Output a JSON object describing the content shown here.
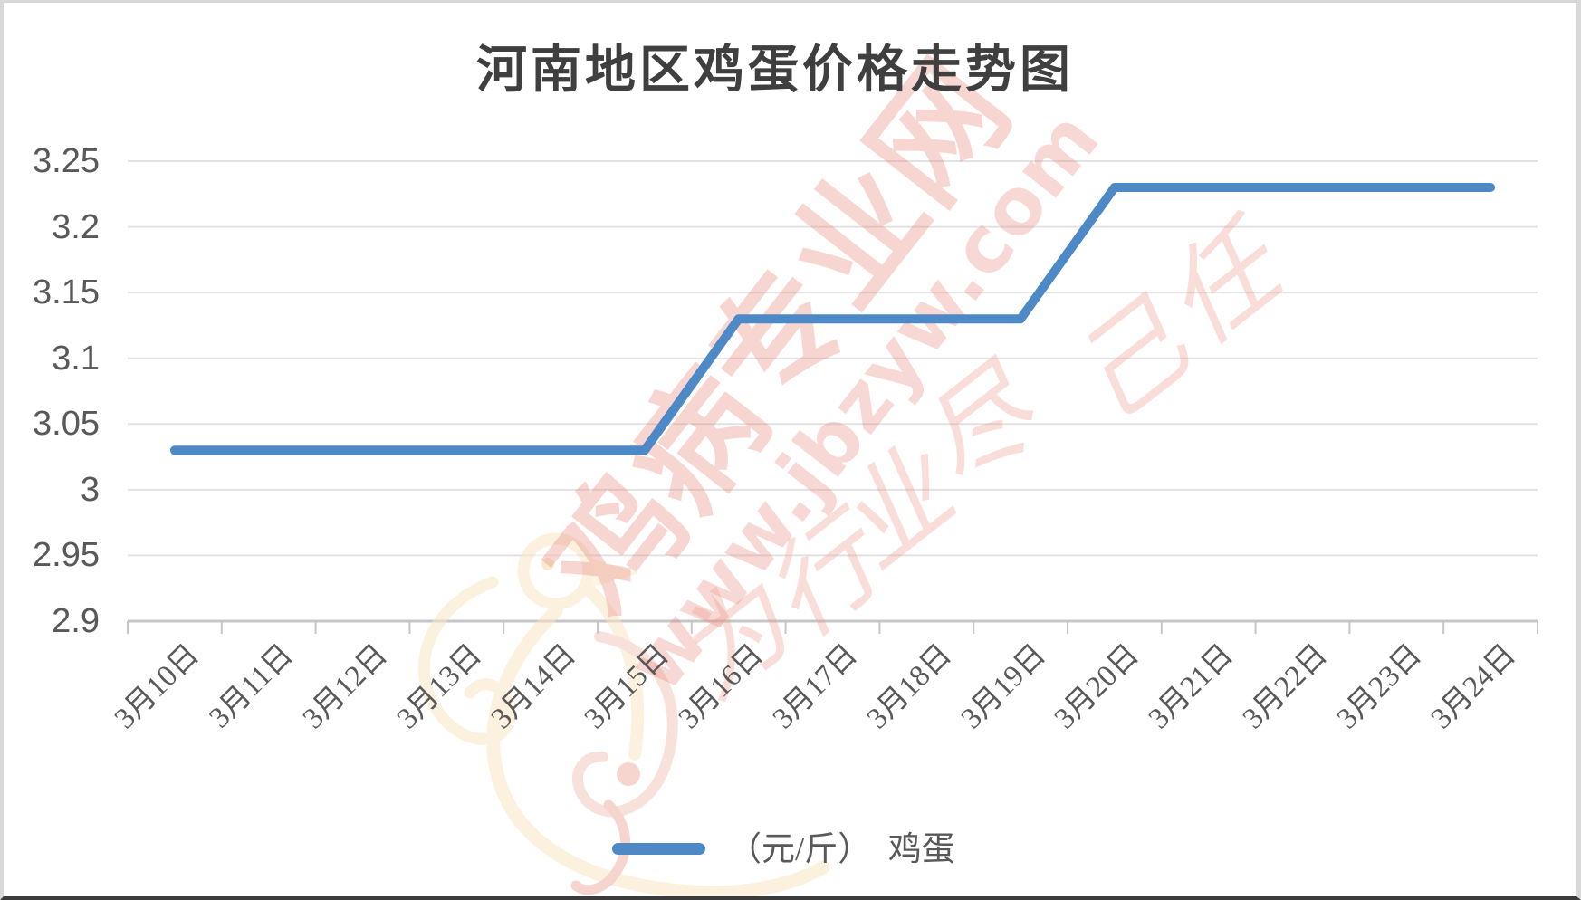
{
  "title": "河南地区鸡蛋价格走势图",
  "legend": {
    "label": "（元/斤）　鸡蛋"
  },
  "watermark": {
    "site_name": "鸡病专业网",
    "url": "www.jbzyw.com",
    "slogan": "为行业尽己任",
    "color": "#E77E73"
  },
  "chart_data": {
    "type": "line",
    "title": "河南地区鸡蛋价格走势图",
    "categories": [
      "3月10日",
      "3月11日",
      "3月12日",
      "3月13日",
      "3月14日",
      "3月15日",
      "3月16日",
      "3月17日",
      "3月18日",
      "3月19日",
      "3月20日",
      "3月21日",
      "3月22日",
      "3月23日",
      "3月24日"
    ],
    "series": [
      {
        "name": "（元/斤） 鸡蛋",
        "values": [
          3.03,
          3.03,
          3.03,
          3.03,
          3.03,
          3.03,
          3.13,
          3.13,
          3.13,
          3.13,
          3.23,
          3.23,
          3.23,
          3.23,
          3.23
        ],
        "color": "#4C89C6"
      }
    ],
    "xlabel": "",
    "ylabel": "",
    "ylim": [
      2.9,
      3.25
    ],
    "ytick_step": 0.05,
    "yticks": [
      "3.25",
      "3.2",
      "3.15",
      "3.1",
      "3.05",
      "3",
      "2.95",
      "2.9"
    ],
    "grid": true,
    "gridline_color": "#E2E2E2",
    "axis_color": "#C6C6C6",
    "label_color": "#595959",
    "legend_position": "bottom"
  }
}
